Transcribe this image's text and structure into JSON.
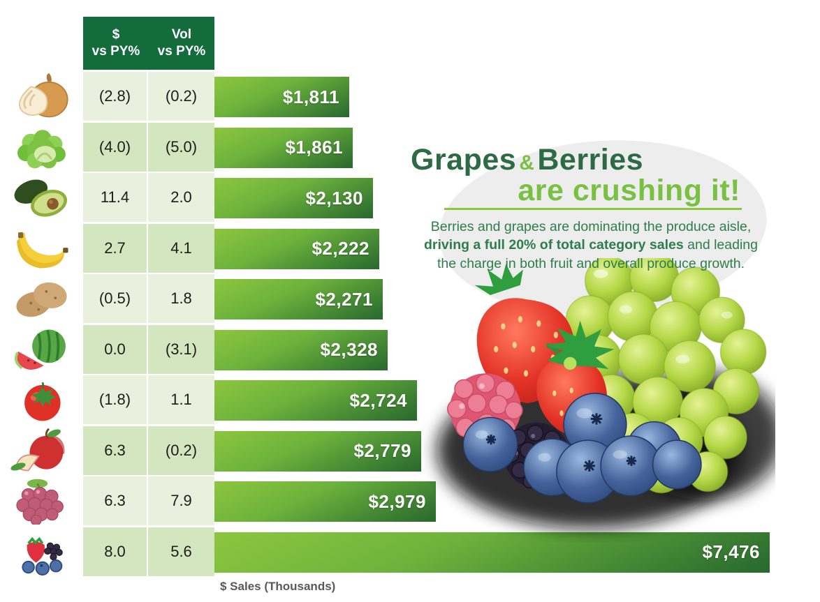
{
  "chart_data": {
    "type": "bar",
    "orientation": "horizontal",
    "xlabel": "$ Sales (Thousands)",
    "xlim": [
      0,
      7476
    ],
    "grid": false,
    "legend": "none",
    "columns": [
      "$ vs PY%",
      "Vol vs PY%"
    ],
    "rows": [
      {
        "icon": "onion-icon",
        "dollar_vs_py": "(2.8)",
        "vol_vs_py": "(0.2)",
        "sales": 1811,
        "sales_label": "$1,811"
      },
      {
        "icon": "lettuce-icon",
        "dollar_vs_py": "(4.0)",
        "vol_vs_py": "(5.0)",
        "sales": 1861,
        "sales_label": "$1,861"
      },
      {
        "icon": "avocado-icon",
        "dollar_vs_py": "11.4",
        "vol_vs_py": "2.0",
        "sales": 2130,
        "sales_label": "$2,130"
      },
      {
        "icon": "banana-icon",
        "dollar_vs_py": "2.7",
        "vol_vs_py": "4.1",
        "sales": 2222,
        "sales_label": "$2,222"
      },
      {
        "icon": "potato-icon",
        "dollar_vs_py": "(0.5)",
        "vol_vs_py": "1.8",
        "sales": 2271,
        "sales_label": "$2,271"
      },
      {
        "icon": "watermelon-icon",
        "dollar_vs_py": "0.0",
        "vol_vs_py": "(3.1)",
        "sales": 2328,
        "sales_label": "$2,328"
      },
      {
        "icon": "tomato-icon",
        "dollar_vs_py": "(1.8)",
        "vol_vs_py": "1.1",
        "sales": 2724,
        "sales_label": "$2,724"
      },
      {
        "icon": "apple-icon",
        "dollar_vs_py": "6.3",
        "vol_vs_py": "(0.2)",
        "sales": 2779,
        "sales_label": "$2,779"
      },
      {
        "icon": "grapes-icon",
        "dollar_vs_py": "6.3",
        "vol_vs_py": "7.9",
        "sales": 2979,
        "sales_label": "$2,979"
      },
      {
        "icon": "berries-icon",
        "dollar_vs_py": "8.0",
        "vol_vs_py": "5.6",
        "sales": 7476,
        "sales_label": "$7,476"
      }
    ]
  },
  "header": {
    "col1_line1": "$",
    "col1_line2": "vs PY%",
    "col2_line1": "Vol",
    "col2_line2": "vs PY%"
  },
  "axis": {
    "label": "$ Sales (Thousands)"
  },
  "callout": {
    "title_word1": "Grapes",
    "title_amp": "&",
    "title_word2": "Berries",
    "title_line2": "are crushing it!",
    "body_pre": "Berries and grapes are dominating the produce aisle, ",
    "body_bold": "driving a full 20% of total category sales",
    "body_post": " and leading the charge in both fruit and overall produce growth."
  },
  "colors": {
    "header_green": "#146c3c",
    "row_light": "#e9f1de",
    "row_dark": "#d4e6bf",
    "bar_gradient_light": "#8dc63f",
    "bar_gradient_dark": "#27682e",
    "title_dark_green": "#2d6b44",
    "title_light_green": "#7ac143",
    "body_green": "#2e7d4c",
    "underline_green": "#8cc63f",
    "axis_gray": "#58595b",
    "blob_gray": "#ededed"
  }
}
